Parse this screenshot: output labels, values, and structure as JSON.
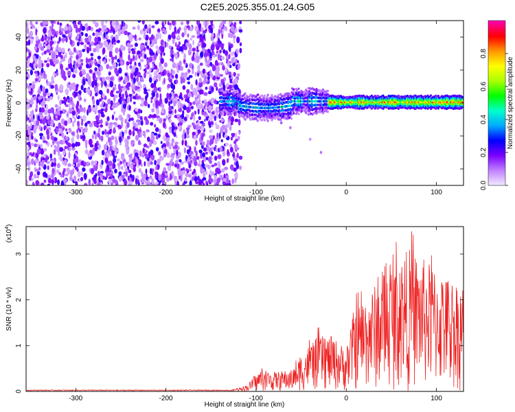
{
  "title": "C2E5.2025.355.01.24.G05",
  "chart_data": [
    {
      "type": "heatmap",
      "xlabel": "Height of straight line (km)",
      "ylabel": "Frequency (Hz)",
      "xlim": [
        -355,
        130
      ],
      "ylim": [
        -50,
        50
      ],
      "xticks": [
        -300,
        -200,
        -100,
        0,
        100
      ],
      "yticks": [
        -40,
        -20,
        0,
        20,
        40
      ],
      "colorbar": {
        "label": "Normalized spectral amplitude",
        "range": [
          0,
          1
        ],
        "ticks": [
          "0.0",
          "0.2",
          "0.4",
          "0.6",
          "0.8"
        ],
        "tick_values": [
          0,
          0.2,
          0.4,
          0.6,
          0.8
        ],
        "colors": [
          "#f0e8ff",
          "#c080ff",
          "#7a00ff",
          "#0000ff",
          "#00aaff",
          "#00ffcc",
          "#00ff00",
          "#aaff00",
          "#ffff00",
          "#ff9900",
          "#ff0000",
          "#ff00aa"
        ]
      },
      "regions": [
        {
          "name": "noise",
          "x_range": [
            -355,
            -125
          ],
          "y_range": [
            -50,
            50
          ],
          "amplitude": 0.2
        },
        {
          "name": "signal-transition",
          "x_range": [
            -140,
            -20
          ],
          "center_freq": 0,
          "half_width_hz": 5,
          "amplitude": 0.45
        },
        {
          "name": "signal-steady",
          "x_range": [
            -20,
            130
          ],
          "center_freq": 0,
          "half_width_hz": 3,
          "amplitude": 0.85
        }
      ]
    },
    {
      "type": "line",
      "xlabel": "Height of straight line (km)",
      "ylabel": "SNR (10 * v/v)",
      "y_scale_label": "(x10",
      "y_scale_exponent": "4",
      "y_scale_suffix": ")",
      "xlim": [
        -355,
        130
      ],
      "ylim": [
        0,
        3.6
      ],
      "xticks": [
        -300,
        -200,
        -100,
        0,
        100
      ],
      "yticks": [
        0,
        1,
        2,
        3
      ],
      "color": "#ee2020",
      "envelope": [
        {
          "x": -355,
          "y": 0.02
        },
        {
          "x": -130,
          "y": 0.02
        },
        {
          "x": -110,
          "y": 0.15
        },
        {
          "x": -95,
          "y": 0.5
        },
        {
          "x": -80,
          "y": 0.45
        },
        {
          "x": -60,
          "y": 0.5
        },
        {
          "x": -45,
          "y": 1.0
        },
        {
          "x": -30,
          "y": 1.3
        },
        {
          "x": -15,
          "y": 1.25
        },
        {
          "x": 0,
          "y": 1.0
        },
        {
          "x": 10,
          "y": 2.0
        },
        {
          "x": 30,
          "y": 2.4
        },
        {
          "x": 50,
          "y": 3.0
        },
        {
          "x": 70,
          "y": 3.3
        },
        {
          "x": 90,
          "y": 3.0
        },
        {
          "x": 110,
          "y": 2.7
        },
        {
          "x": 130,
          "y": 2.5
        }
      ]
    }
  ]
}
